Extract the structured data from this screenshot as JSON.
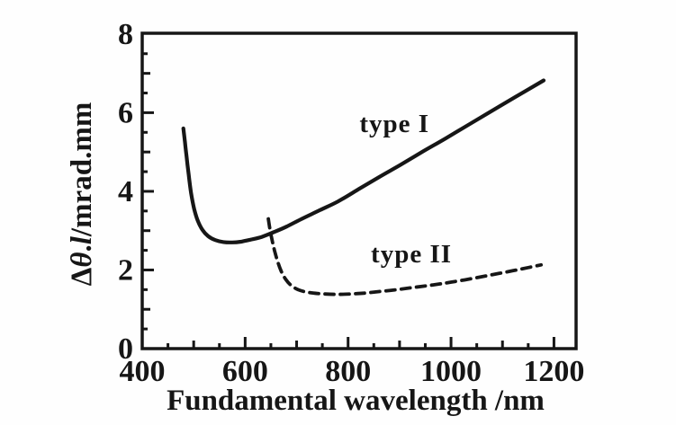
{
  "figure": {
    "background": "#fefefe",
    "ink_color": "#161616"
  },
  "chart_data": {
    "type": "line",
    "title": "",
    "xlabel": "Fundamental wavelength /nm",
    "ylabel": "Δθ.l/mrad.mm",
    "ylabel_rich": [
      [
        "Δ",
        false
      ],
      [
        "θ",
        true
      ],
      [
        ".",
        false
      ],
      [
        "l",
        true
      ],
      [
        "/mrad.mm",
        false
      ]
    ],
    "xlim": [
      400,
      1243
    ],
    "ylim": [
      0,
      8.02
    ],
    "x_ticks": [
      400,
      600,
      800,
      1000,
      1200
    ],
    "x_minor_step": 50,
    "y_ticks": [
      0,
      2,
      4,
      6,
      8
    ],
    "y_minor_step": 0.5,
    "grid": false,
    "legend_position": "inline-annotations",
    "series": [
      {
        "name": "type I",
        "line": "solid",
        "x": [
          480,
          483,
          486,
          490,
          495,
          501,
          508,
          517,
          528,
          542,
          558,
          575,
          592,
          610,
          632,
          655,
          680,
          710,
          745,
          780,
          820,
          860,
          900,
          945,
          990,
          1035,
          1080,
          1125,
          1180
        ],
        "y": [
          5.6,
          5.25,
          4.9,
          4.45,
          3.95,
          3.55,
          3.25,
          3.02,
          2.86,
          2.76,
          2.71,
          2.7,
          2.72,
          2.77,
          2.84,
          2.96,
          3.1,
          3.3,
          3.52,
          3.74,
          4.05,
          4.36,
          4.66,
          5.01,
          5.35,
          5.7,
          6.05,
          6.4,
          6.82
        ]
      },
      {
        "name": "type II",
        "line": "dashed",
        "x": [
          645,
          648,
          652,
          657,
          663,
          670,
          679,
          690,
          703,
          718,
          735,
          755,
          780,
          805,
          830,
          860,
          895,
          930,
          965,
          1000,
          1040,
          1080,
          1120,
          1150,
          1175
        ],
        "y": [
          3.3,
          3.05,
          2.78,
          2.5,
          2.22,
          1.97,
          1.76,
          1.6,
          1.5,
          1.44,
          1.41,
          1.39,
          1.38,
          1.39,
          1.41,
          1.45,
          1.5,
          1.56,
          1.62,
          1.69,
          1.78,
          1.88,
          1.98,
          2.06,
          2.13
        ]
      }
    ],
    "annotations": [
      {
        "text": "type I",
        "x": 890,
        "y": 5.74
      },
      {
        "text": "type II",
        "x": 923,
        "y": 2.42
      }
    ]
  }
}
